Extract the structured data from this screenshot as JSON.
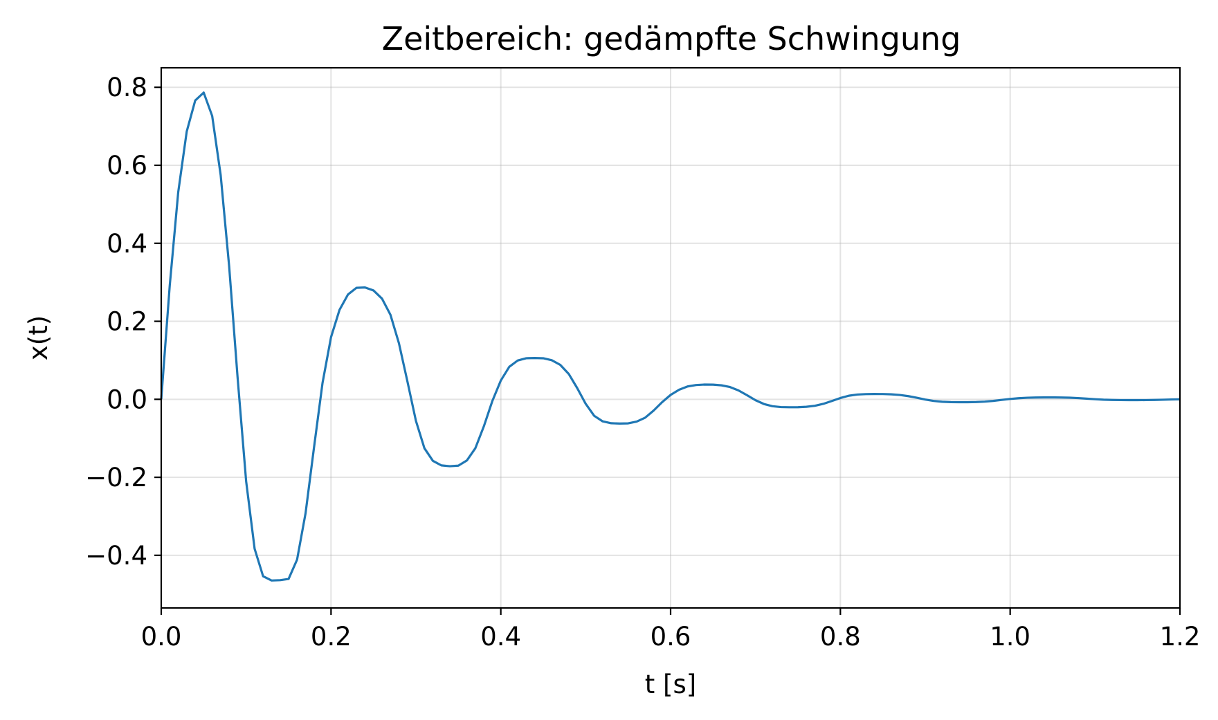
{
  "chart_data": {
    "type": "line",
    "title": "Zeitbereich: gedämpfte Schwingung",
    "xlabel": "t [s]",
    "ylabel": "x(t)",
    "xlim": [
      0.0,
      1.2
    ],
    "ylim": [
      -0.535,
      0.85
    ],
    "xticks": [
      0.0,
      0.2,
      0.4,
      0.6,
      0.8,
      1.0,
      1.2
    ],
    "xtick_labels": [
      "0.0",
      "0.2",
      "0.4",
      "0.6",
      "0.8",
      "1.0",
      "1.2"
    ],
    "yticks": [
      -0.4,
      -0.2,
      0.0,
      0.2,
      0.4,
      0.6,
      0.8
    ],
    "ytick_labels": [
      "−0.4",
      "−0.2",
      "0.0",
      "0.2",
      "0.4",
      "0.6",
      "0.8"
    ],
    "grid": true,
    "series_color": "#1f77b4",
    "series": [
      {
        "x": [
          0.0,
          0.01,
          0.02,
          0.03,
          0.04,
          0.05,
          0.06,
          0.07,
          0.08,
          0.09,
          0.1,
          0.11,
          0.12,
          0.13,
          0.14,
          0.15,
          0.16,
          0.17,
          0.18,
          0.19,
          0.2,
          0.21,
          0.22,
          0.23,
          0.24,
          0.25,
          0.26,
          0.27,
          0.28,
          0.29,
          0.3,
          0.31,
          0.32,
          0.33,
          0.34,
          0.35,
          0.36,
          0.37,
          0.38,
          0.39,
          0.4,
          0.41,
          0.42,
          0.43,
          0.44,
          0.45,
          0.46,
          0.47,
          0.48,
          0.49,
          0.5,
          0.51,
          0.52,
          0.53,
          0.54,
          0.55,
          0.56,
          0.57,
          0.58,
          0.59,
          0.6,
          0.61,
          0.62,
          0.63,
          0.64,
          0.65,
          0.66,
          0.67,
          0.68,
          0.69,
          0.7,
          0.71,
          0.72,
          0.73,
          0.74,
          0.75,
          0.76,
          0.77,
          0.78,
          0.79,
          0.8,
          0.81,
          0.82,
          0.83,
          0.84,
          0.85,
          0.86,
          0.87,
          0.88,
          0.89,
          0.9,
          0.91,
          0.92,
          0.93,
          0.94,
          0.95,
          0.96,
          0.97,
          0.98,
          0.99,
          1.0,
          1.01,
          1.02,
          1.03,
          1.04,
          1.05,
          1.06,
          1.07,
          1.08,
          1.09,
          1.1,
          1.11,
          1.12,
          1.13,
          1.14,
          1.15,
          1.16,
          1.17,
          1.18,
          1.19,
          1.2
        ],
        "y": [
          0.0,
          0.2913,
          0.5311,
          0.6865,
          0.7661,
          0.7864,
          0.7265,
          0.5749,
          0.3409,
          0.0541,
          -0.2101,
          -0.3833,
          -0.4537,
          -0.4646,
          -0.4637,
          -0.4606,
          -0.4111,
          -0.2921,
          -0.1227,
          0.0421,
          0.1593,
          0.2293,
          0.2688,
          0.2859,
          0.2868,
          0.2791,
          0.2583,
          0.2167,
          0.1436,
          0.0457,
          -0.0552,
          -0.1255,
          -0.1578,
          -0.1695,
          -0.1716,
          -0.1701,
          -0.1569,
          -0.1254,
          -0.0694,
          -0.0046,
          0.0481,
          0.0834,
          0.0996,
          0.1053,
          0.1058,
          0.1052,
          0.1002,
          0.0883,
          0.0651,
          0.0287,
          -0.0116,
          -0.0424,
          -0.0566,
          -0.0613,
          -0.0622,
          -0.0617,
          -0.0572,
          -0.0472,
          -0.0289,
          -0.0074,
          0.0112,
          0.0245,
          0.0329,
          0.0366,
          0.0378,
          0.0376,
          0.0358,
          0.0314,
          0.0227,
          0.0106,
          -0.0023,
          -0.0121,
          -0.0177,
          -0.0199,
          -0.0204,
          -0.0203,
          -0.0192,
          -0.0166,
          -0.0116,
          -0.0043,
          0.0033,
          0.0092,
          0.0122,
          0.0133,
          0.0136,
          0.0135,
          0.0128,
          0.0111,
          0.0081,
          0.0039,
          -0.0006,
          -0.0042,
          -0.0063,
          -0.0072,
          -0.0074,
          -0.0074,
          -0.007,
          -0.006,
          -0.0041,
          -0.0016,
          0.0009,
          0.0028,
          0.004,
          0.0046,
          0.0048,
          0.0048,
          0.0046,
          0.0041,
          0.0031,
          0.0017,
          0.0002,
          -0.001,
          -0.0017,
          -0.002,
          -0.0021,
          -0.0021,
          -0.002,
          -0.0017,
          -0.0011,
          -0.0004,
          0.0
        ]
      }
    ]
  }
}
